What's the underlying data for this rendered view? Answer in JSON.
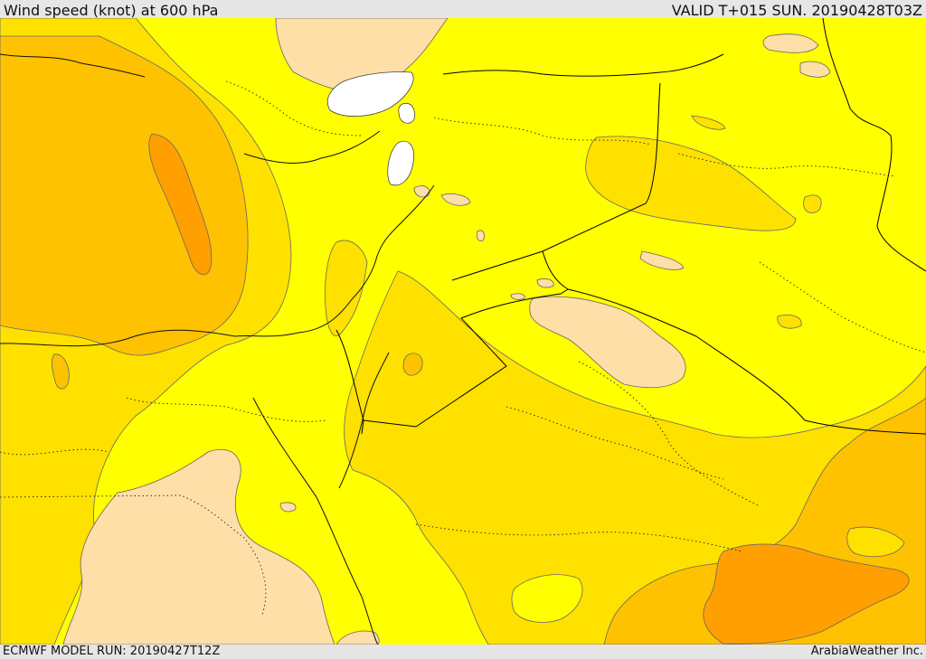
{
  "header": {
    "title": "Wind speed (knot) at 600 hPa",
    "valid_time": "VALID T+015 SUN. 20190428T03Z"
  },
  "footer": {
    "model_run": "ECMWF MODEL RUN: 20190427T12Z",
    "credit": "ArabiaWeather Inc."
  },
  "colors": {
    "background_frame": "#e6e6e6",
    "no_data": "#ffffff",
    "level_low": "#fedfa8",
    "level_1": "#ffff00",
    "level_2": "#ffe100",
    "level_3": "#ffc200",
    "level_4": "#ffa000",
    "contour_line": "#666666",
    "border_line": "#000000"
  }
}
